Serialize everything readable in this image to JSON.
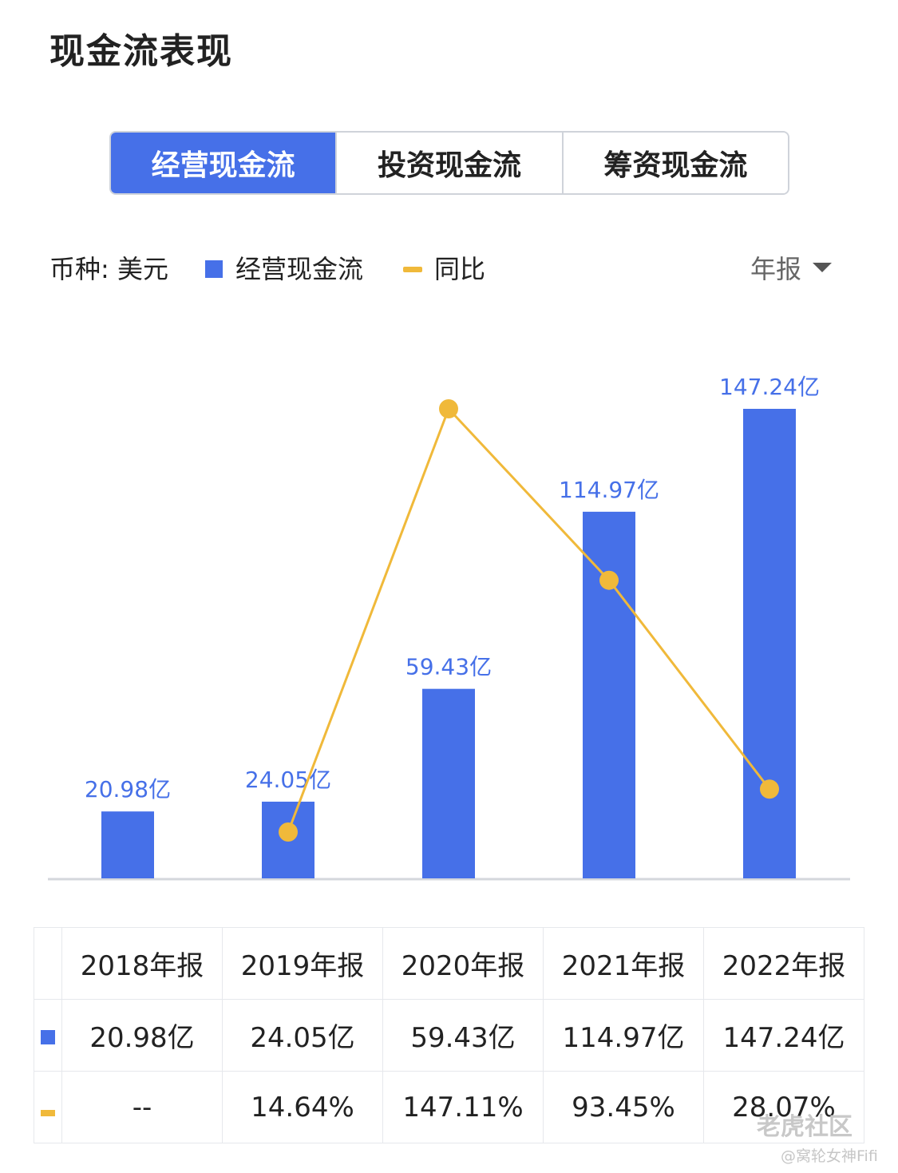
{
  "title": "现金流表现",
  "tabs": [
    {
      "label": "经营现金流",
      "active": true
    },
    {
      "label": "投资现金流",
      "active": false
    },
    {
      "label": "筹资现金流",
      "active": false
    }
  ],
  "legend": {
    "currency": "币种: 美元",
    "bar_series": "经营现金流",
    "line_series": "同比",
    "period": "年报"
  },
  "chart_data": {
    "type": "bar",
    "categories": [
      "2018年报",
      "2019年报",
      "2020年报",
      "2021年报",
      "2022年报"
    ],
    "series": [
      {
        "name": "经营现金流",
        "type": "bar",
        "values": [
          20.98,
          24.05,
          59.43,
          114.97,
          147.24
        ],
        "labels": [
          "20.98亿",
          "24.05亿",
          "59.43亿",
          "114.97亿",
          "147.24亿"
        ],
        "color": "#4670e8"
      },
      {
        "name": "同比",
        "type": "line",
        "values": [
          null,
          14.64,
          147.11,
          93.45,
          28.07
        ],
        "labels": [
          "--",
          "14.64%",
          "147.11%",
          "93.45%",
          "28.07%"
        ],
        "color": "#f0b93a"
      }
    ],
    "legend": "top-left",
    "grid": false
  },
  "table": {
    "headers": [
      "2018年报",
      "2019年报",
      "2020年报",
      "2021年报",
      "2022年报"
    ],
    "bar_row": [
      "20.98亿",
      "24.05亿",
      "59.43亿",
      "114.97亿",
      "147.24亿"
    ],
    "line_row": [
      "--",
      "14.64%",
      "147.11%",
      "93.45%",
      "28.07%"
    ]
  },
  "watermark": {
    "main": "老虎社区",
    "sub": "@窝轮女神Fifi"
  },
  "colors": {
    "accent": "#4670e8",
    "line": "#f0b93a",
    "positive": "#e8453c"
  }
}
